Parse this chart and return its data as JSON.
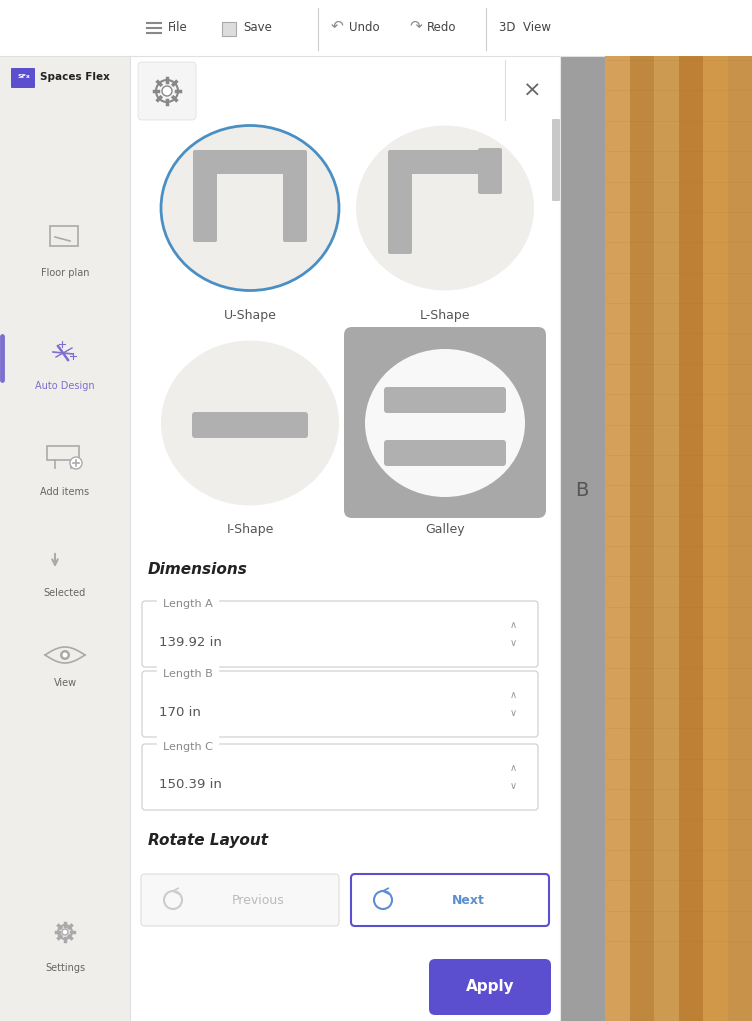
{
  "bg_color": "#f0eeeb",
  "toolbar_bg": "#ffffff",
  "sidebar_bg": "#f0eeeb",
  "panel_bg": "#ffffff",
  "right_bg": "#a0a0a0",
  "wood_color": "#c8924a",
  "sidebar_active_color": "#7c6fcf",
  "sidebar_active_bar_color": "#7c6fcf",
  "shape_circle_bg": "#f0eeeb",
  "shape_selected_border": "#4a8fc4",
  "galley_bg": "#a8a8a8",
  "galley_oval_bg": "#f8f8f8",
  "shape_icon_color": "#b0b0b0",
  "apply_bg": "#5b4fcf",
  "apply_text_color": "#ffffff",
  "next_border_color": "#5b4fcf",
  "next_text_color": "#5b8fcf",
  "dimensions_label": "Dimensions",
  "length_a_label": "Length A",
  "length_a_value": "139.92 in",
  "length_b_label": "Length B",
  "length_b_value": "170 in",
  "length_c_label": "Length C",
  "length_c_value": "150.39 in",
  "rotate_label": "Rotate Layout",
  "btn_previous": "Previous",
  "btn_next": "Next",
  "btn_apply": "Apply",
  "b_label_color": "#555555"
}
